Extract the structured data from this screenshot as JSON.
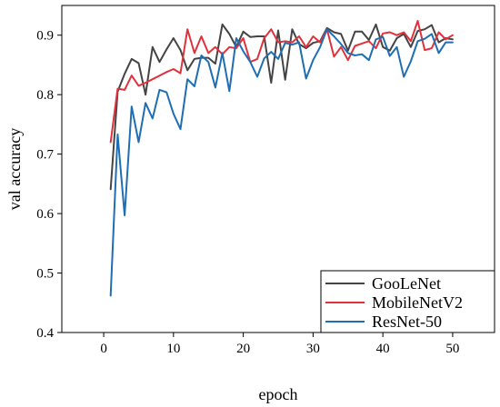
{
  "chart_data": {
    "type": "line",
    "xlabel": "epoch",
    "ylabel": "val accuracy",
    "xlim": [
      -6,
      56
    ],
    "ylim": [
      0.4,
      0.95
    ],
    "xticks": [
      0,
      10,
      20,
      30,
      40,
      50
    ],
    "yticks": [
      0.4,
      0.5,
      0.6,
      0.7,
      0.8,
      0.9
    ],
    "xtick_labels": [
      "0",
      "10",
      "20",
      "30",
      "40",
      "50"
    ],
    "ytick_labels": [
      "0.4",
      "0.5",
      "0.6",
      "0.7",
      "0.8",
      "0.9"
    ],
    "grid": false,
    "legend_position": "bottom-right",
    "x": [
      1,
      2,
      3,
      4,
      5,
      6,
      7,
      8,
      9,
      10,
      11,
      12,
      13,
      14,
      15,
      16,
      17,
      18,
      19,
      20,
      21,
      22,
      23,
      24,
      25,
      26,
      27,
      28,
      29,
      30,
      31,
      32,
      33,
      34,
      35,
      36,
      37,
      38,
      39,
      40,
      41,
      42,
      43,
      44,
      45,
      46,
      47,
      48,
      49,
      50
    ],
    "series": [
      {
        "name": "GooLeNet",
        "color": "#444444",
        "values": [
          0.641,
          0.805,
          0.835,
          0.86,
          0.853,
          0.8,
          0.88,
          0.855,
          0.876,
          0.895,
          0.875,
          0.841,
          0.86,
          0.862,
          0.862,
          0.852,
          0.918,
          0.902,
          0.88,
          0.906,
          0.897,
          0.898,
          0.898,
          0.82,
          0.908,
          0.825,
          0.91,
          0.885,
          0.878,
          0.887,
          0.89,
          0.912,
          0.905,
          0.902,
          0.874,
          0.906,
          0.906,
          0.892,
          0.918,
          0.88,
          0.874,
          0.895,
          0.902,
          0.88,
          0.907,
          0.91,
          0.917,
          0.888,
          0.895,
          0.893
        ]
      },
      {
        "name": "MobileNetV2",
        "color": "#e0323c",
        "values": [
          0.72,
          0.81,
          0.808,
          0.832,
          0.815,
          0.82,
          0.826,
          0.832,
          0.838,
          0.843,
          0.836,
          0.91,
          0.87,
          0.898,
          0.87,
          0.88,
          0.868,
          0.88,
          0.878,
          0.895,
          0.855,
          0.86,
          0.895,
          0.91,
          0.888,
          0.89,
          0.888,
          0.898,
          0.88,
          0.898,
          0.888,
          0.91,
          0.864,
          0.88,
          0.858,
          0.882,
          0.886,
          0.89,
          0.878,
          0.903,
          0.905,
          0.9,
          0.905,
          0.89,
          0.924,
          0.875,
          0.878,
          0.905,
          0.893,
          0.9
        ]
      },
      {
        "name": "ResNet-50",
        "color": "#1f6eb4",
        "values": [
          0.462,
          0.733,
          0.597,
          0.78,
          0.72,
          0.786,
          0.76,
          0.808,
          0.804,
          0.768,
          0.742,
          0.826,
          0.814,
          0.866,
          0.855,
          0.812,
          0.87,
          0.806,
          0.895,
          0.873,
          0.855,
          0.83,
          0.861,
          0.872,
          0.86,
          0.887,
          0.884,
          0.888,
          0.827,
          0.858,
          0.88,
          0.91,
          0.898,
          0.885,
          0.87,
          0.866,
          0.868,
          0.858,
          0.893,
          0.897,
          0.865,
          0.88,
          0.83,
          0.856,
          0.89,
          0.894,
          0.902,
          0.87,
          0.888,
          0.888
        ]
      }
    ]
  }
}
